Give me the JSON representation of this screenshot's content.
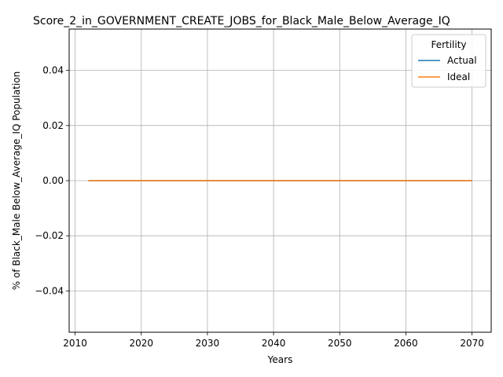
{
  "chart_data": {
    "type": "line",
    "title": "Score_2_in_GOVERNMENT_CREATE_JOBS_for_Black_Male_Below_Average_IQ",
    "xlabel": "Years",
    "ylabel": "% of Black_Male Below_Average_IQ Population",
    "x": [
      2012,
      2070
    ],
    "xlim": [
      2009.1,
      2072.9
    ],
    "ylim": [
      -0.055,
      0.055
    ],
    "xticks": [
      2010,
      2020,
      2030,
      2040,
      2050,
      2060,
      2070
    ],
    "yticks": [
      -0.04,
      -0.02,
      0.0,
      0.02,
      0.04
    ],
    "ytick_labels": [
      "−0.04",
      "−0.02",
      "0.00",
      "0.02",
      "0.04"
    ],
    "grid": true,
    "legend": {
      "title": "Fertility",
      "placement": "top-right"
    },
    "series": [
      {
        "name": "Actual",
        "color": "#1f77b4",
        "values": [
          0,
          0
        ]
      },
      {
        "name": "Ideal",
        "color": "#ff7f0e",
        "values": [
          0,
          0
        ]
      }
    ]
  }
}
